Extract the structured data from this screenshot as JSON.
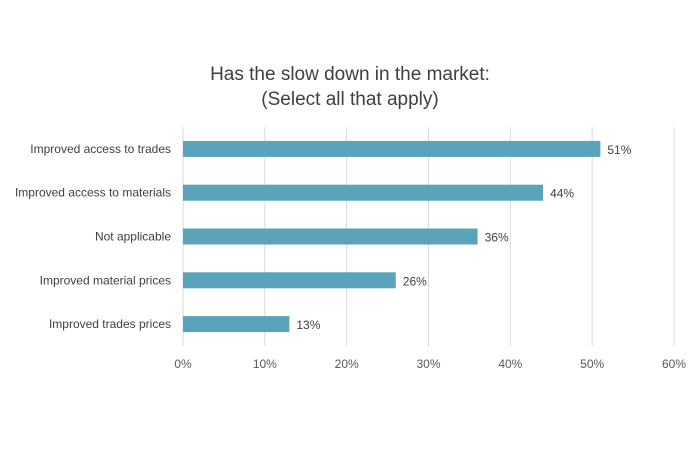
{
  "chart_data": {
    "type": "bar",
    "orientation": "horizontal",
    "title_line1": "Has the slow down in the market:",
    "title_line2": "(Select all that apply)",
    "categories": [
      "Improved access to trades",
      "Improved access to materials",
      "Not applicable",
      "Improved material prices",
      "Improved trades prices"
    ],
    "values": [
      51,
      44,
      36,
      26,
      13
    ],
    "data_labels": [
      "51%",
      "44%",
      "36%",
      "26%",
      "13%"
    ],
    "xlim": [
      0,
      60
    ],
    "x_ticks": [
      0,
      10,
      20,
      30,
      40,
      50,
      60
    ],
    "x_tick_labels": [
      "0%",
      "10%",
      "20%",
      "30%",
      "40%",
      "50%",
      "60%"
    ],
    "xlabel": "",
    "ylabel": "",
    "grid": "vertical",
    "legend": "none",
    "bar_color": "#5BA3BA",
    "grid_color": "#D9D9D9"
  }
}
